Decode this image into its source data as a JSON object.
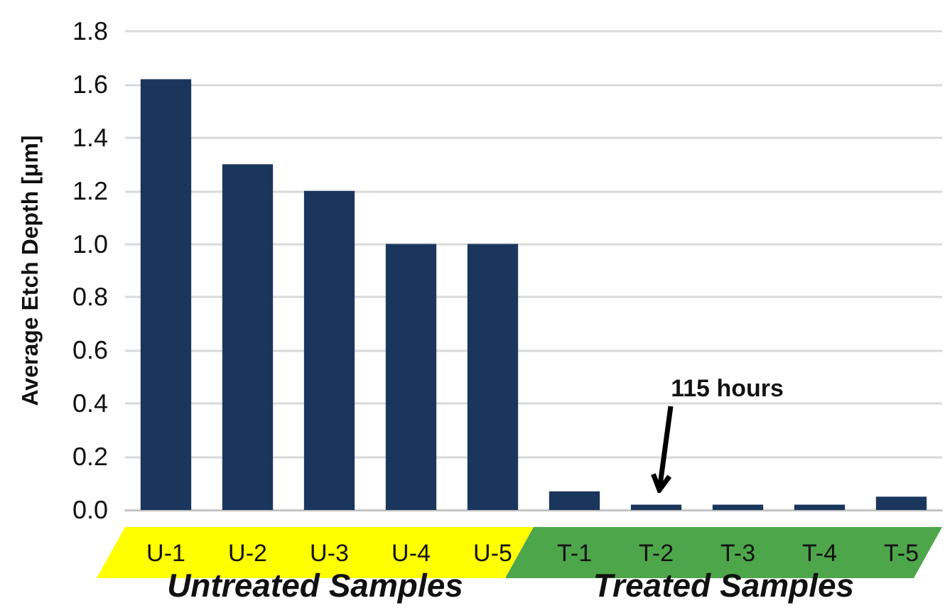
{
  "chart_data": {
    "type": "bar",
    "ylabel": "Average Etch Depth [μm]",
    "categories": [
      "U-1",
      "U-2",
      "U-3",
      "U-4",
      "U-5",
      "T-1",
      "T-2",
      "T-3",
      "T-4",
      "T-5"
    ],
    "values": [
      1.62,
      1.3,
      1.2,
      1.0,
      1.0,
      0.07,
      0.02,
      0.02,
      0.02,
      0.05
    ],
    "color": "#1b365d",
    "ylim": [
      0,
      1.8
    ],
    "yticks": [
      {
        "value": 0,
        "label": "0.0"
      },
      {
        "value": 0.2,
        "label": "0.2"
      },
      {
        "value": 0.4,
        "label": "0.4"
      },
      {
        "value": 0.6,
        "label": "0.6"
      },
      {
        "value": 0.8,
        "label": "0.8"
      },
      {
        "value": 1.0,
        "label": "1.0"
      },
      {
        "value": 1.2,
        "label": "1.2"
      },
      {
        "value": 1.4,
        "label": "1.4"
      },
      {
        "value": 1.6,
        "label": "1.6"
      },
      {
        "value": 1.8,
        "label": "1.8"
      }
    ],
    "grid": "y",
    "annotations": [
      "115 hours",
      "Untreated Samples",
      "Treated Samples"
    ]
  }
}
